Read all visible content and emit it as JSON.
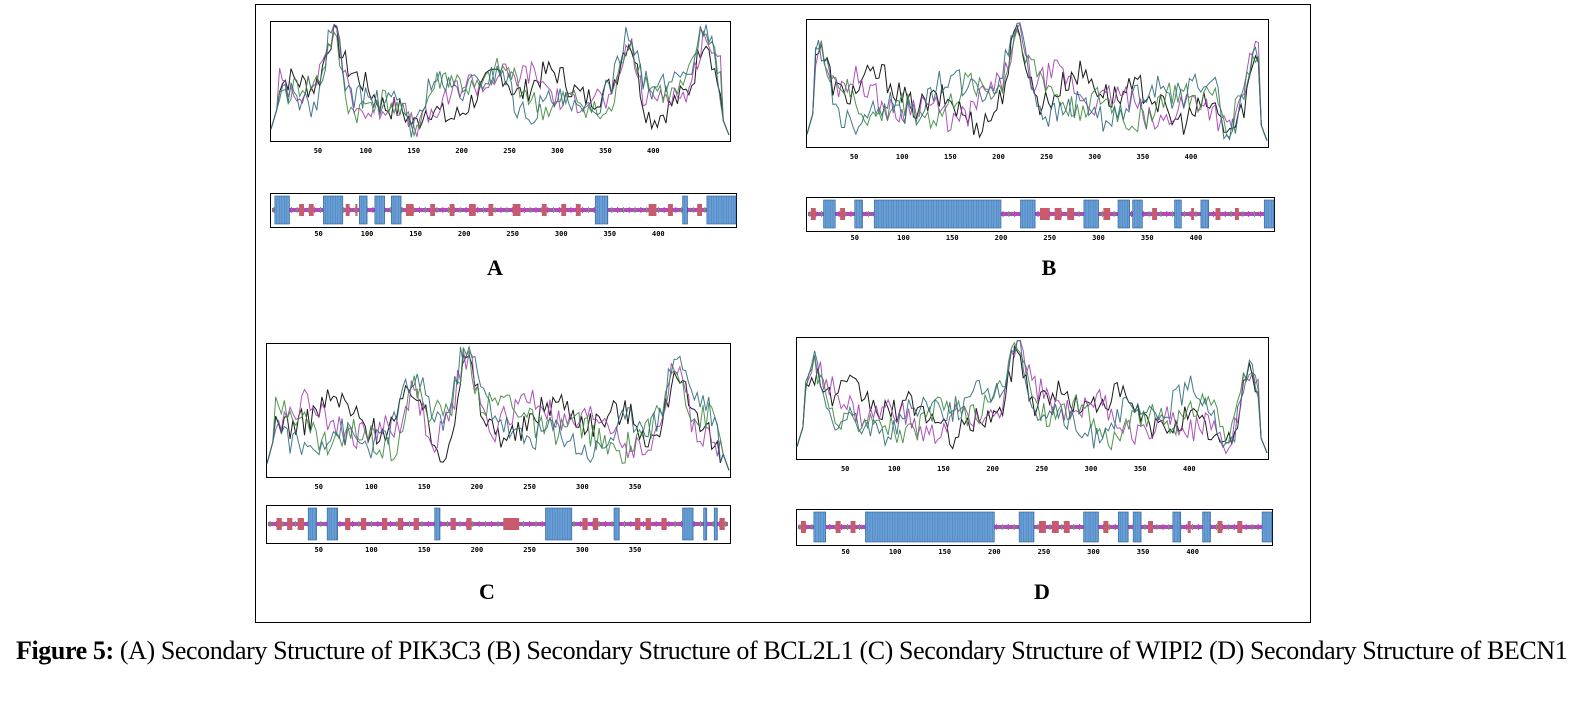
{
  "colors": {
    "helix": "#6a9fd6",
    "helix_stroke": "#2a5f9e",
    "strand": "#c85a6e",
    "coil": "#b14bb7",
    "turn": "#5cae58",
    "line_alpha": "#000000",
    "line_beta": "#a43fb0",
    "line_coil": "#3d8a3d",
    "line_turn": "#2f6a7a"
  },
  "panels": [
    {
      "label": "A",
      "length": 480,
      "ticks": [
        50,
        100,
        150,
        200,
        250,
        300,
        350,
        400
      ],
      "helix_segments": [
        [
          5,
          20
        ],
        [
          55,
          75
        ],
        [
          92,
          100
        ],
        [
          108,
          118
        ],
        [
          125,
          135
        ],
        [
          335,
          348
        ],
        [
          425,
          430
        ],
        [
          450,
          480
        ]
      ],
      "strand_segments": [
        [
          30,
          35
        ],
        [
          40,
          45
        ],
        [
          78,
          82
        ],
        [
          88,
          90
        ],
        [
          140,
          148
        ],
        [
          165,
          170
        ],
        [
          185,
          190
        ],
        [
          205,
          212
        ],
        [
          225,
          230
        ],
        [
          250,
          258
        ],
        [
          280,
          285
        ],
        [
          300,
          305
        ],
        [
          315,
          320
        ],
        [
          390,
          398
        ],
        [
          410,
          415
        ],
        [
          440,
          445
        ]
      ],
      "peaks": [
        [
          65,
          0.95
        ],
        [
          375,
          0.92
        ],
        [
          455,
          0.96
        ],
        [
          150,
          0.1
        ],
        [
          240,
          0.6
        ]
      ]
    },
    {
      "label": "B",
      "length": 480,
      "ticks": [
        50,
        100,
        150,
        200,
        250,
        300,
        350,
        400
      ],
      "helix_segments": [
        [
          18,
          30
        ],
        [
          50,
          58
        ],
        [
          70,
          200
        ],
        [
          220,
          235
        ],
        [
          285,
          300
        ],
        [
          320,
          332
        ],
        [
          335,
          345
        ],
        [
          378,
          385
        ],
        [
          405,
          413
        ],
        [
          470,
          480
        ]
      ],
      "strand_segments": [
        [
          5,
          10
        ],
        [
          35,
          40
        ],
        [
          240,
          250
        ],
        [
          255,
          262
        ],
        [
          268,
          275
        ],
        [
          305,
          312
        ],
        [
          355,
          360
        ],
        [
          395,
          398
        ],
        [
          420,
          425
        ],
        [
          440,
          444
        ]
      ],
      "peaks": [
        [
          220,
          0.96
        ],
        [
          12,
          0.8
        ],
        [
          470,
          0.75
        ],
        [
          440,
          0.1
        ]
      ]
    },
    {
      "label": "C",
      "length": 440,
      "ticks": [
        50,
        100,
        150,
        200,
        250,
        300,
        350
      ],
      "helix_segments": [
        [
          40,
          48
        ],
        [
          58,
          68
        ],
        [
          160,
          165
        ],
        [
          265,
          290
        ],
        [
          330,
          335
        ],
        [
          395,
          405
        ],
        [
          415,
          418
        ],
        [
          425,
          428
        ]
      ],
      "strand_segments": [
        [
          10,
          15
        ],
        [
          20,
          25
        ],
        [
          30,
          36
        ],
        [
          75,
          80
        ],
        [
          90,
          95
        ],
        [
          110,
          115
        ],
        [
          125,
          130
        ],
        [
          140,
          145
        ],
        [
          175,
          180
        ],
        [
          190,
          195
        ],
        [
          225,
          240
        ],
        [
          300,
          305
        ],
        [
          310,
          315
        ],
        [
          350,
          355
        ],
        [
          360,
          365
        ],
        [
          375,
          380
        ],
        [
          430,
          435
        ]
      ],
      "peaks": [
        [
          190,
          0.98
        ],
        [
          390,
          0.92
        ],
        [
          140,
          0.72
        ],
        [
          440,
          0.05
        ]
      ]
    },
    {
      "label": "D",
      "length": 480,
      "ticks": [
        50,
        100,
        150,
        200,
        250,
        300,
        350,
        400
      ],
      "helix_segments": [
        [
          18,
          30
        ],
        [
          70,
          200
        ],
        [
          225,
          240
        ],
        [
          290,
          305
        ],
        [
          325,
          335
        ],
        [
          340,
          348
        ],
        [
          380,
          388
        ],
        [
          410,
          418
        ],
        [
          470,
          480
        ]
      ],
      "strand_segments": [
        [
          5,
          10
        ],
        [
          40,
          45
        ],
        [
          55,
          60
        ],
        [
          245,
          252
        ],
        [
          258,
          265
        ],
        [
          270,
          276
        ],
        [
          310,
          315
        ],
        [
          355,
          360
        ],
        [
          395,
          398
        ],
        [
          425,
          430
        ],
        [
          445,
          450
        ]
      ],
      "peaks": [
        [
          225,
          0.98
        ],
        [
          18,
          0.78
        ],
        [
          460,
          0.8
        ],
        [
          440,
          0.08
        ]
      ]
    }
  ],
  "labels": [
    "A",
    "B",
    "C",
    "D"
  ],
  "caption": {
    "bold": "Figure 5:",
    "text": " (A) Secondary Structure of PIK3C3 (B) Secondary Structure of BCL2L1 (C) Secondary Structure of WIPI2 (D) Secondary Structure of BECN1"
  }
}
